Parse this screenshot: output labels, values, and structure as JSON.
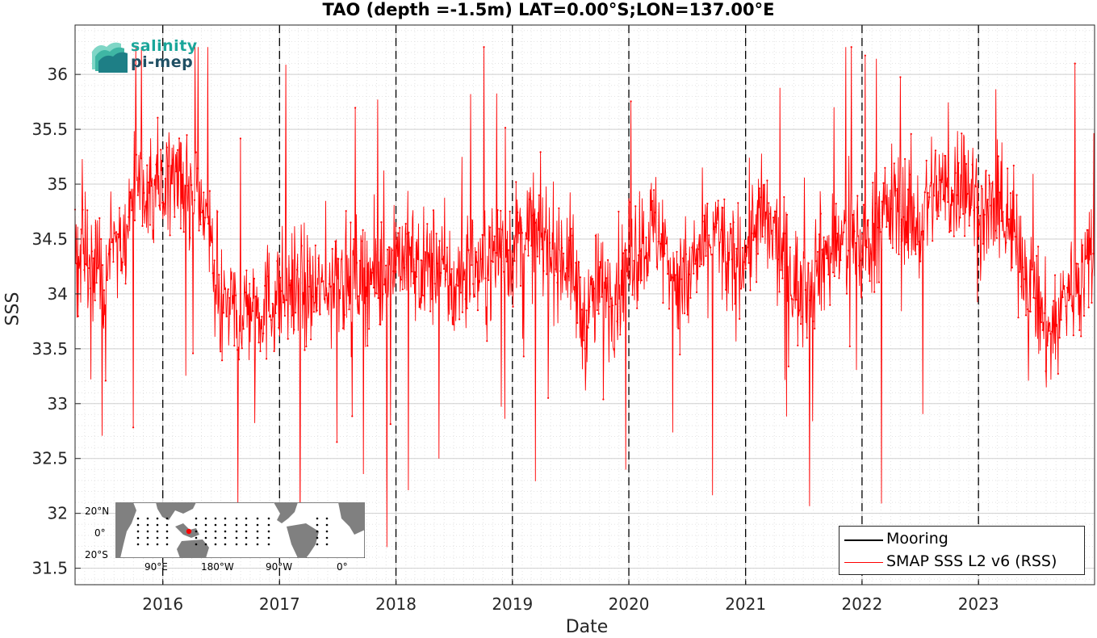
{
  "chart_data": {
    "type": "line",
    "title": "TAO (depth =-1.5m) LAT=0.00°S;LON=137.00°E",
    "xlabel": "Date",
    "ylabel": "SSS",
    "xlim": [
      "2015-04-01",
      "2023-12-31"
    ],
    "ylim": [
      31.35,
      36.45
    ],
    "x_ticks": [
      "2016",
      "2017",
      "2018",
      "2019",
      "2020",
      "2021",
      "2022",
      "2023"
    ],
    "y_ticks": [
      "31.5",
      "32",
      "32.5",
      "33",
      "33.5",
      "34",
      "34.5",
      "35",
      "35.5",
      "36"
    ],
    "grid": true,
    "vertical_year_lines": "dashed",
    "legend_position": "bottom-right",
    "legend": [
      {
        "name": "Mooring",
        "color": "#000000"
      },
      {
        "name": "SMAP SSS L2 v6 (RSS)",
        "color": "#ff0000"
      }
    ],
    "series": [
      {
        "name": "Mooring",
        "color": "#000000",
        "x": [],
        "values": []
      },
      {
        "name": "SMAP SSS L2 v6 (RSS)",
        "color": "#ff0000",
        "x": [
          "2015-04-01",
          "2015-05-15",
          "2015-07-01",
          "2015-08-15",
          "2015-10-01",
          "2015-11-15",
          "2016-01-01",
          "2016-02-15",
          "2016-04-01",
          "2016-05-15",
          "2016-07-01",
          "2016-08-15",
          "2016-10-01",
          "2016-11-15",
          "2017-01-01",
          "2017-02-15",
          "2017-04-01",
          "2017-05-15",
          "2017-07-01",
          "2017-08-15",
          "2017-10-01",
          "2017-11-15",
          "2018-01-01",
          "2018-02-15",
          "2018-04-01",
          "2018-05-15",
          "2018-07-01",
          "2018-08-15",
          "2018-10-01",
          "2018-11-15",
          "2019-01-01",
          "2019-02-15",
          "2019-04-01",
          "2019-05-15",
          "2019-07-01",
          "2019-08-15",
          "2019-10-01",
          "2019-11-15",
          "2020-01-01",
          "2020-02-15",
          "2020-04-01",
          "2020-05-15",
          "2020-07-01",
          "2020-08-15",
          "2020-10-01",
          "2020-11-15",
          "2021-01-01",
          "2021-02-15",
          "2021-04-01",
          "2021-05-15",
          "2021-07-01",
          "2021-08-15",
          "2021-10-01",
          "2021-11-15",
          "2022-01-01",
          "2022-02-15",
          "2022-04-01",
          "2022-05-15",
          "2022-07-01",
          "2022-08-15",
          "2022-10-01",
          "2022-11-15",
          "2023-01-01",
          "2023-02-15",
          "2023-04-01",
          "2023-05-15",
          "2023-07-01",
          "2023-08-15",
          "2023-10-01",
          "2023-11-15",
          "2023-12-31"
        ],
        "values": [
          34.4,
          34.3,
          34.2,
          34.5,
          34.8,
          34.9,
          35.0,
          35.1,
          34.9,
          34.6,
          34.0,
          33.8,
          33.9,
          33.9,
          34.0,
          34.1,
          34.0,
          34.0,
          34.2,
          34.1,
          34.2,
          34.1,
          34.4,
          34.3,
          34.2,
          34.3,
          34.0,
          34.3,
          34.2,
          34.4,
          34.4,
          34.6,
          34.5,
          34.4,
          34.3,
          33.7,
          34.1,
          34.0,
          34.3,
          34.5,
          34.6,
          34.2,
          34.1,
          34.4,
          34.6,
          34.2,
          34.4,
          34.7,
          34.5,
          34.2,
          34.0,
          34.3,
          34.4,
          34.5,
          34.4,
          34.6,
          34.8,
          34.8,
          34.6,
          35.0,
          34.9,
          35.1,
          34.8,
          34.7,
          34.6,
          34.4,
          33.9,
          33.6,
          34.0,
          34.2,
          34.3
        ],
        "high_frequency_min": 31.65,
        "high_frequency_max": 36.25
      }
    ]
  },
  "logo": {
    "line1": "salinity",
    "line2": "pi-mep"
  },
  "inset_map": {
    "lat_labels": [
      "20°N",
      "0°",
      "20°S"
    ],
    "lon_labels": [
      "90°E",
      "180°W",
      "90°W",
      "0°"
    ],
    "land_color": "#808080",
    "ocean_color": "#ffffff",
    "marker_color": "#ff0000"
  }
}
